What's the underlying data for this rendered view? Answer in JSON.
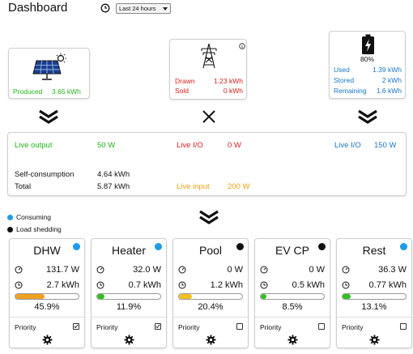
{
  "header": {
    "title": "Dashboard",
    "range_selected": "Last 24 hours"
  },
  "solar": {
    "produced_label": "Produced",
    "produced_value": "3.65 kWh",
    "icon": "solar-panel-icon"
  },
  "grid": {
    "drawn_label": "Drawn",
    "drawn_value": "1.23 kWh",
    "sold_label": "Sold",
    "sold_value": "0 kWh",
    "icon": "power-pylon-icon"
  },
  "battery": {
    "level": "80%",
    "used_label": "Used",
    "used_value": "1.39 kWh",
    "stored_label": "Stored",
    "stored_value": "2 kWh",
    "remaining_label": "Remaining",
    "remaining_value": "1.6 kWh",
    "icon": "battery-charging-icon"
  },
  "summary": {
    "live_output_label": "Live output",
    "live_output_value": "50 W",
    "live_io_grid_label": "Live I/O",
    "live_io_grid_value": "0 W",
    "live_io_battery_label": "Live I/O",
    "live_io_battery_value": "150 W",
    "self_consumption_label": "Self-consumption",
    "self_consumption_value": "4.64 kWh",
    "total_label": "Total",
    "total_value": "5.87 kWh",
    "live_input_label": "Live input",
    "live_input_value": "200 W"
  },
  "legend": {
    "consuming": "Consuming",
    "load_shedding": "Load shedding"
  },
  "colors": {
    "green": "#22b418",
    "red": "#d82020",
    "blue": "#1a76c8",
    "orange": "#f0a010",
    "consuming": "#1e9be8",
    "shedding": "#111111"
  },
  "loads": [
    {
      "name": "DHW",
      "power": "131.7 W",
      "energy": "2.7 kWh",
      "percent": "45.9%",
      "fraction": 0.459,
      "bar_color": "#f0a020",
      "status": "consuming",
      "priority_label": "Priority",
      "priority_checked": true
    },
    {
      "name": "Heater",
      "power": "32.0 W",
      "energy": "0.7 kWh",
      "percent": "11.9%",
      "fraction": 0.119,
      "bar_color": "#30c020",
      "status": "consuming",
      "priority_label": "Priority",
      "priority_checked": true
    },
    {
      "name": "Pool",
      "power": "0 W",
      "energy": "1.2 kWh",
      "percent": "20.4%",
      "fraction": 0.204,
      "bar_color": "#f0c020",
      "status": "shedding",
      "priority_label": "Priority",
      "priority_checked": false
    },
    {
      "name": "EV CP",
      "power": "0 W",
      "energy": "0.5 kWh",
      "percent": "8.5%",
      "fraction": 0.085,
      "bar_color": "#30c020",
      "status": "shedding",
      "priority_label": "Priority",
      "priority_checked": false
    },
    {
      "name": "Rest",
      "power": "36.3 W",
      "energy": "0.77 kWh",
      "percent": "13.1%",
      "fraction": 0.131,
      "bar_color": "#30c020",
      "status": "consuming",
      "priority_label": "Priority",
      "priority_checked": false
    }
  ]
}
